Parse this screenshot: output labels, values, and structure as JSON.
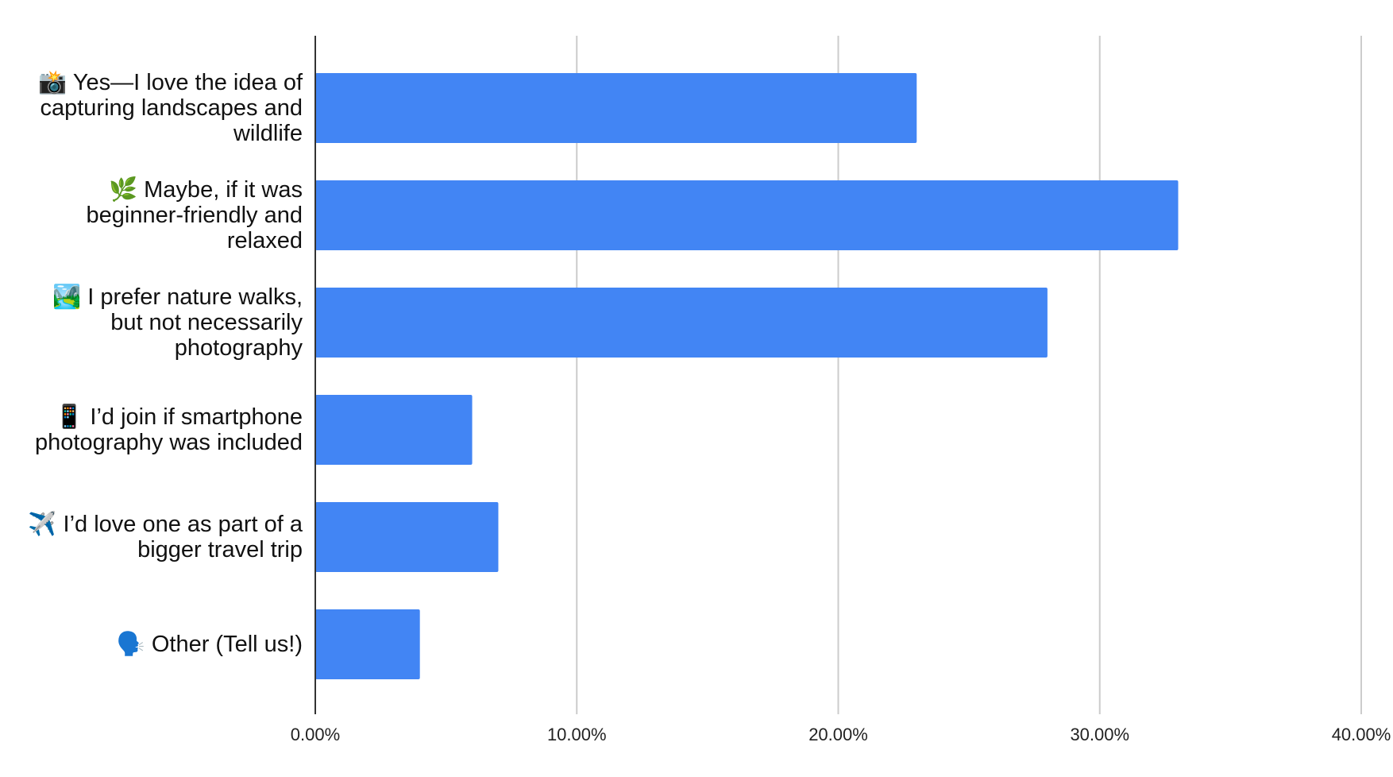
{
  "chart_data": {
    "type": "bar",
    "orientation": "horizontal",
    "categories": [
      "📸 Yes—I love the idea of capturing landscapes and wildlife",
      "🌿 Maybe, if it was beginner-friendly and relaxed",
      "🏞️ I prefer nature walks, but not necessarily photography",
      "📱 I’d join if smartphone photography was included",
      "✈️ I’d love one as part of a bigger travel trip",
      "🗣️ Other (Tell us!)"
    ],
    "values": [
      23,
      33,
      28,
      6,
      7,
      4
    ],
    "color": "#4285f4",
    "xlim": [
      0,
      40
    ],
    "xticks": [
      {
        "value": 0,
        "label": "0.00%"
      },
      {
        "value": 10,
        "label": "10.00%"
      },
      {
        "value": 20,
        "label": "20.00%"
      },
      {
        "value": 30,
        "label": "30.00%"
      },
      {
        "value": 40,
        "label": "40.00%"
      }
    ],
    "grid": true
  }
}
